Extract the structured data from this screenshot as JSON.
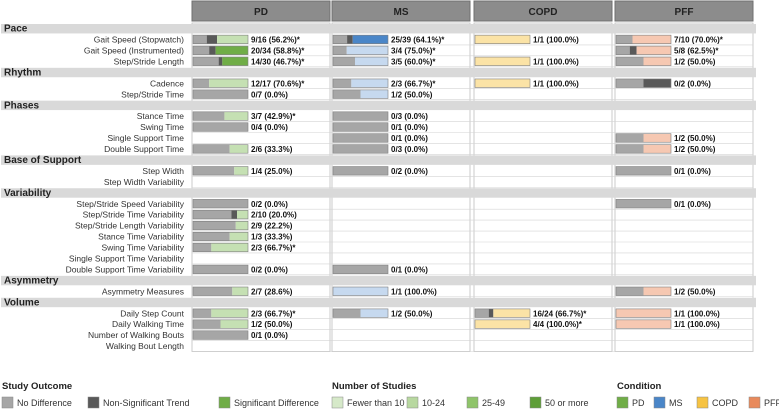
{
  "chart_data": {
    "type": "table",
    "columns": [
      "PD",
      "MS",
      "COPD",
      "PFF"
    ],
    "rows": [
      {
        "kind": "category",
        "label": "Pace"
      },
      {
        "kind": "row",
        "label": "Gait Speed (Stopwatch)",
        "cells": [
          {
            "label": "9/16 (56.2%)*",
            "nd": 4,
            "nst": 3,
            "sig": 9,
            "n": 16
          },
          {
            "label": "25/39 (64.1%)*",
            "nd": 10,
            "nst": 4,
            "sig": 25,
            "n": 39
          },
          {
            "label": "1/1 (100.0%)",
            "nd": 0,
            "nst": 0,
            "sig": 1,
            "n": 1
          },
          {
            "label": "7/10 (70.0%)*",
            "nd": 3,
            "nst": 0,
            "sig": 7,
            "n": 10
          }
        ]
      },
      {
        "kind": "row",
        "label": "Gait Speed (Instrumented)",
        "cells": [
          {
            "label": "20/34 (58.8%)*",
            "nd": 10,
            "nst": 4,
            "sig": 20,
            "n": 34
          },
          {
            "label": "3/4 (75.0%)*",
            "nd": 1,
            "nst": 0,
            "sig": 3,
            "n": 4
          },
          null,
          {
            "label": "5/8 (62.5%)*",
            "nd": 2,
            "nst": 1,
            "sig": 5,
            "n": 8
          }
        ]
      },
      {
        "kind": "row",
        "label": "Step/Stride Length",
        "cells": [
          {
            "label": "14/30 (46.7%)*",
            "nd": 14,
            "nst": 2,
            "sig": 14,
            "n": 30
          },
          {
            "label": "3/5 (60.0%)*",
            "nd": 2,
            "nst": 0,
            "sig": 3,
            "n": 5
          },
          {
            "label": "1/1 (100.0%)",
            "nd": 0,
            "nst": 0,
            "sig": 1,
            "n": 1
          },
          {
            "label": "1/2 (50.0%)",
            "nd": 1,
            "nst": 0,
            "sig": 1,
            "n": 2
          }
        ]
      },
      {
        "kind": "category",
        "label": "Rhythm"
      },
      {
        "kind": "row",
        "label": "Cadence",
        "cells": [
          {
            "label": "12/17 (70.6%)*",
            "nd": 5,
            "nst": 0,
            "sig": 12,
            "n": 17
          },
          {
            "label": "2/3 (66.7%)*",
            "nd": 1,
            "nst": 0,
            "sig": 2,
            "n": 3
          },
          {
            "label": "1/1 (100.0%)",
            "nd": 0,
            "nst": 0,
            "sig": 1,
            "n": 1
          },
          {
            "label": "0/2 (0.0%)",
            "nd": 1,
            "nst": 1,
            "sig": 0,
            "n": 2
          }
        ]
      },
      {
        "kind": "row",
        "label": "Step/Stride Time",
        "cells": [
          {
            "label": "0/7 (0.0%)",
            "nd": 7,
            "nst": 0,
            "sig": 0,
            "n": 7
          },
          {
            "label": "1/2 (50.0%)",
            "nd": 1,
            "nst": 0,
            "sig": 1,
            "n": 2
          },
          null,
          null
        ]
      },
      {
        "kind": "category",
        "label": "Phases"
      },
      {
        "kind": "row",
        "label": "Stance Time",
        "cells": [
          {
            "label": "3/7 (42.9%)*",
            "nd": 4,
            "nst": 0,
            "sig": 3,
            "n": 7
          },
          {
            "label": "0/3 (0.0%)",
            "nd": 3,
            "nst": 0,
            "sig": 0,
            "n": 3
          },
          null,
          null
        ]
      },
      {
        "kind": "row",
        "label": "Swing Time",
        "cells": [
          {
            "label": "0/4 (0.0%)",
            "nd": 4,
            "nst": 0,
            "sig": 0,
            "n": 4
          },
          {
            "label": "0/1 (0.0%)",
            "nd": 1,
            "nst": 0,
            "sig": 0,
            "n": 1
          },
          null,
          null
        ]
      },
      {
        "kind": "row",
        "label": "Single Support Time",
        "cells": [
          null,
          {
            "label": "0/1 (0.0%)",
            "nd": 1,
            "nst": 0,
            "sig": 0,
            "n": 1
          },
          null,
          {
            "label": "1/2 (50.0%)",
            "nd": 1,
            "nst": 0,
            "sig": 1,
            "n": 2
          }
        ]
      },
      {
        "kind": "row",
        "label": "Double Support Time",
        "cells": [
          {
            "label": "2/6 (33.3%)",
            "nd": 4,
            "nst": 0,
            "sig": 2,
            "n": 6
          },
          {
            "label": "0/3 (0.0%)",
            "nd": 3,
            "nst": 0,
            "sig": 0,
            "n": 3
          },
          null,
          {
            "label": "1/2 (50.0%)",
            "nd": 1,
            "nst": 0,
            "sig": 1,
            "n": 2
          }
        ]
      },
      {
        "kind": "category",
        "label": "Base of Support"
      },
      {
        "kind": "row",
        "label": "Step Width",
        "cells": [
          {
            "label": "1/4 (25.0%)",
            "nd": 3,
            "nst": 0,
            "sig": 1,
            "n": 4
          },
          {
            "label": "0/2 (0.0%)",
            "nd": 2,
            "nst": 0,
            "sig": 0,
            "n": 2
          },
          null,
          {
            "label": "0/1 (0.0%)",
            "nd": 1,
            "nst": 0,
            "sig": 0,
            "n": 1
          }
        ]
      },
      {
        "kind": "row",
        "label": "Step Width Variability",
        "cells": [
          null,
          null,
          null,
          null
        ]
      },
      {
        "kind": "category",
        "label": "Variability"
      },
      {
        "kind": "row",
        "label": "Step/Stride Speed Variability",
        "cells": [
          {
            "label": "0/2 (0.0%)",
            "nd": 2,
            "nst": 0,
            "sig": 0,
            "n": 2
          },
          null,
          null,
          {
            "label": "0/1 (0.0%)",
            "nd": 1,
            "nst": 0,
            "sig": 0,
            "n": 1
          }
        ]
      },
      {
        "kind": "row",
        "label": "Step/Stride Time Variability",
        "cells": [
          {
            "label": "2/10 (20.0%)",
            "nd": 7,
            "nst": 1,
            "sig": 2,
            "n": 10
          },
          null,
          null,
          null
        ]
      },
      {
        "kind": "row",
        "label": "Step/Stride Length Variability",
        "cells": [
          {
            "label": "2/9 (22.2%)",
            "nd": 7,
            "nst": 0,
            "sig": 2,
            "n": 9
          },
          null,
          null,
          null
        ]
      },
      {
        "kind": "row",
        "label": "Stance Time  Variability",
        "cells": [
          {
            "label": "1/3 (33.3%)",
            "nd": 2,
            "nst": 0,
            "sig": 1,
            "n": 3
          },
          null,
          null,
          null
        ]
      },
      {
        "kind": "row",
        "label": "Swing Time  Variability",
        "cells": [
          {
            "label": "2/3 (66.7%)*",
            "nd": 1,
            "nst": 0,
            "sig": 2,
            "n": 3
          },
          null,
          null,
          null
        ]
      },
      {
        "kind": "row",
        "label": "Single Support Time  Variability",
        "cells": [
          null,
          null,
          null,
          null
        ]
      },
      {
        "kind": "row",
        "label": "Double Support Time  Variability",
        "cells": [
          {
            "label": "0/2 (0.0%)",
            "nd": 2,
            "nst": 0,
            "sig": 0,
            "n": 2
          },
          {
            "label": "0/1 (0.0%)",
            "nd": 1,
            "nst": 0,
            "sig": 0,
            "n": 1
          },
          null,
          null
        ]
      },
      {
        "kind": "category",
        "label": "Asymmetry"
      },
      {
        "kind": "row",
        "label": "Asymmetry Measures",
        "cells": [
          {
            "label": "2/7 (28.6%)",
            "nd": 5,
            "nst": 0,
            "sig": 2,
            "n": 7
          },
          {
            "label": "1/1 (100.0%)",
            "nd": 0,
            "nst": 0,
            "sig": 1,
            "n": 1
          },
          null,
          {
            "label": "1/2 (50.0%)",
            "nd": 1,
            "nst": 0,
            "sig": 1,
            "n": 2
          }
        ]
      },
      {
        "kind": "category",
        "label": "Volume"
      },
      {
        "kind": "row",
        "label": "Daily Step Count",
        "cells": [
          {
            "label": "2/3 (66.7%)*",
            "nd": 1,
            "nst": 0,
            "sig": 2,
            "n": 3
          },
          {
            "label": "1/2 (50.0%)",
            "nd": 1,
            "nst": 0,
            "sig": 1,
            "n": 2
          },
          {
            "label": "16/24 (66.7%)*",
            "nd": 6,
            "nst": 2,
            "sig": 16,
            "n": 24
          },
          {
            "label": "1/1 (100.0%)",
            "nd": 0,
            "nst": 0,
            "sig": 1,
            "n": 1
          }
        ]
      },
      {
        "kind": "row",
        "label": "Daily Walking Time",
        "cells": [
          {
            "label": "1/2 (50.0%)",
            "nd": 1,
            "nst": 0,
            "sig": 1,
            "n": 2
          },
          null,
          {
            "label": "4/4 (100.0%)*",
            "nd": 0,
            "nst": 0,
            "sig": 4,
            "n": 4
          },
          {
            "label": "1/1 (100.0%)",
            "nd": 0,
            "nst": 0,
            "sig": 1,
            "n": 1
          }
        ]
      },
      {
        "kind": "row",
        "label": "Number of Walking Bouts",
        "cells": [
          {
            "label": "0/1 (0.0%)",
            "nd": 1,
            "nst": 0,
            "sig": 0,
            "n": 1
          },
          null,
          null,
          null
        ]
      },
      {
        "kind": "row",
        "label": "Walking Bout Length",
        "cells": [
          null,
          null,
          null,
          null
        ]
      }
    ],
    "legend": {
      "outcome": {
        "title": "Study Outcome",
        "items": [
          {
            "label": "No Difference",
            "color": "#a6a6a6"
          },
          {
            "label": "Non-Significant Trend",
            "color": "#595959"
          },
          {
            "label": "Significant Difference",
            "color": "#70ad47"
          }
        ]
      },
      "studies": {
        "title": "Number of Studies",
        "items": [
          {
            "label": "Fewer than 10",
            "color": "#d6e9c9"
          },
          {
            "label": "10-24",
            "color": "#b8d8a0"
          },
          {
            "label": "25-49",
            "color": "#8fc46a"
          },
          {
            "label": "50 or more",
            "color": "#5e9e38"
          }
        ]
      },
      "condition": {
        "title": "Condition",
        "items": [
          {
            "label": "PD",
            "color": "#70ad47"
          },
          {
            "label": "MS",
            "color": "#4a86c8"
          },
          {
            "label": "COPD",
            "color": "#f6c343"
          },
          {
            "label": "PFF",
            "color": "#e88a5c"
          }
        ]
      }
    },
    "colors": {
      "no_difference": "#a6a6a6",
      "trend": "#595959",
      "header_fill": "#8c8c8c",
      "category_band": "#d9d9d9",
      "condition_full": [
        "#70ad47",
        "#4a86c8",
        "#f6c343",
        "#e88a5c"
      ],
      "condition_light": [
        "#c5e0b3",
        "#c6d9ef",
        "#fbe3a6",
        "#f6c8b2"
      ]
    }
  }
}
